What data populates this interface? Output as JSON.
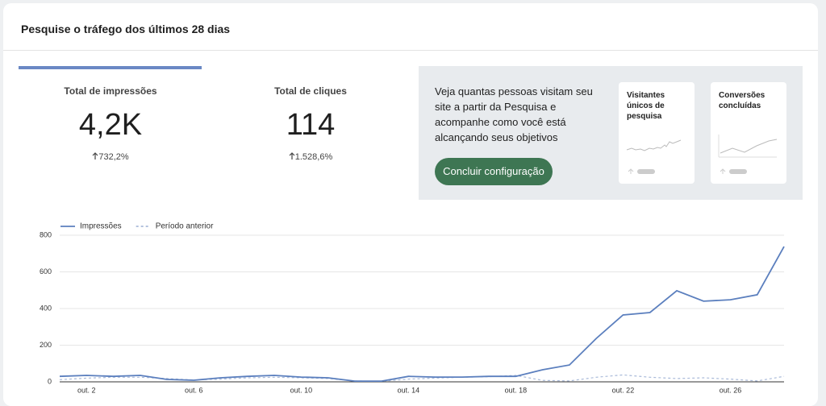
{
  "header": {
    "title": "Pesquise o tráfego dos últimos 28 dias"
  },
  "metrics": [
    {
      "label": "Total de impressões",
      "value": "4,2K",
      "change": "732,2%"
    },
    {
      "label": "Total de cliques",
      "value": "114",
      "change": "1.528,6%"
    }
  ],
  "promo": {
    "text": "Veja quantas pessoas visitam seu site a partir da Pesquisa e acompanhe como você está alcançando seus objetivos",
    "button": "Concluir configuração",
    "cards": [
      "Visitantes únicos de pesquisa",
      "Conversões concluídas"
    ]
  },
  "chart_data": {
    "type": "line",
    "categories": [
      null,
      "out. 2",
      null,
      null,
      null,
      "out. 6",
      null,
      null,
      null,
      "out. 10",
      null,
      null,
      null,
      "out. 14",
      null,
      null,
      null,
      "out. 18",
      null,
      null,
      null,
      "out. 22",
      null,
      null,
      null,
      "out. 26",
      null,
      null
    ],
    "series": [
      {
        "name": "Impressões",
        "color": "#5b7fbe",
        "style": "solid",
        "values": [
          30,
          35,
          30,
          35,
          13,
          9,
          22,
          30,
          35,
          26,
          22,
          4,
          4,
          30,
          26,
          26,
          30,
          30,
          66,
          92,
          237,
          365,
          378,
          497,
          440,
          448,
          475,
          738
        ]
      },
      {
        "name": "Período anterior",
        "color": "#a9bad9",
        "style": "dashed",
        "values": [
          12,
          20,
          25,
          25,
          18,
          10,
          15,
          22,
          25,
          22,
          18,
          5,
          3,
          15,
          20,
          25,
          28,
          35,
          8,
          5,
          25,
          38,
          25,
          18,
          22,
          15,
          5,
          30
        ]
      }
    ],
    "ylim": [
      0,
      800
    ],
    "yticks": [
      0,
      200,
      400,
      600,
      800
    ],
    "grid": true
  }
}
